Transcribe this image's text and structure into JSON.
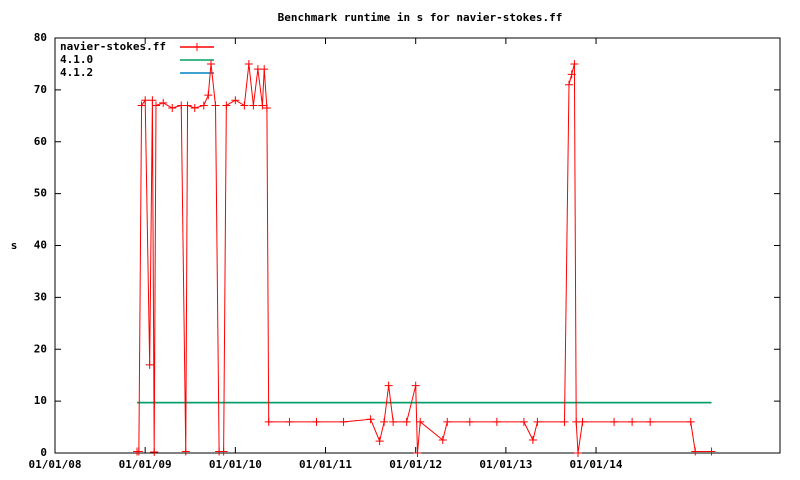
{
  "chart_data": {
    "type": "line",
    "title": "Benchmark runtime in s for navier-stokes.ff",
    "y_label": "s",
    "xlim": [
      2008,
      2016.04
    ],
    "ylim": [
      0,
      80
    ],
    "xticks": [
      {
        "value": 2008,
        "label": "01/01/08"
      },
      {
        "value": 2009,
        "label": "01/01/09"
      },
      {
        "value": 2010,
        "label": "01/01/10"
      },
      {
        "value": 2011,
        "label": "01/01/11"
      },
      {
        "value": 2012,
        "label": "01/01/12"
      },
      {
        "value": 2013,
        "label": "01/01/13"
      },
      {
        "value": 2014,
        "label": "01/01/14"
      }
    ],
    "yticks": [
      0,
      10,
      20,
      30,
      40,
      50,
      60,
      70,
      80
    ],
    "legend": "top-left",
    "series": [
      {
        "name": "navier-stokes.ff",
        "color": "#ff0000",
        "marker": "+",
        "x": [
          2008.91,
          2008.93,
          2008.96,
          2009.0,
          2009.05,
          2009.08,
          2009.1,
          2009.12,
          2009.2,
          2009.3,
          2009.4,
          2009.45,
          2009.47,
          2009.55,
          2009.65,
          2009.7,
          2009.73,
          2009.78,
          2009.82,
          2009.87,
          2009.9,
          2010.0,
          2010.1,
          2010.15,
          2010.2,
          2010.25,
          2010.3,
          2010.32,
          2010.35,
          2010.37,
          2010.6,
          2010.9,
          2011.2,
          2011.5,
          2011.6,
          2011.65,
          2011.7,
          2011.75,
          2011.9,
          2012.0,
          2012.02,
          2012.05,
          2012.3,
          2012.35,
          2012.6,
          2012.9,
          2013.2,
          2013.3,
          2013.35,
          2013.65,
          2013.7,
          2013.73,
          2013.76,
          2013.78,
          2013.8,
          2013.85,
          2014.2,
          2014.4,
          2014.6,
          2015.05,
          2015.1,
          2015.28
        ],
        "values": [
          0.3,
          0.3,
          67,
          68,
          17,
          68,
          0.2,
          67,
          67.5,
          66.5,
          67,
          0.3,
          67,
          66.5,
          67,
          69,
          75,
          67,
          0.3,
          0.3,
          67,
          68,
          67,
          75,
          67,
          74,
          67,
          74,
          66.5,
          6,
          6,
          6,
          6,
          6.5,
          2.3,
          6,
          13,
          6,
          6,
          13,
          0,
          6,
          2.5,
          6,
          6,
          6,
          6,
          2.5,
          6,
          6,
          71,
          73,
          75,
          6,
          0,
          6,
          6,
          6,
          6,
          6,
          0.3,
          0.3
        ]
      },
      {
        "name": "4.1.0",
        "color": "#00a060",
        "x": [
          2008.91,
          2015.28
        ],
        "values": [
          9.7,
          9.7
        ]
      },
      {
        "name": "4.1.2",
        "color": "#0080c0",
        "x": [
          2008.91,
          2015.28
        ],
        "values": [
          9.7,
          9.7
        ]
      }
    ]
  }
}
